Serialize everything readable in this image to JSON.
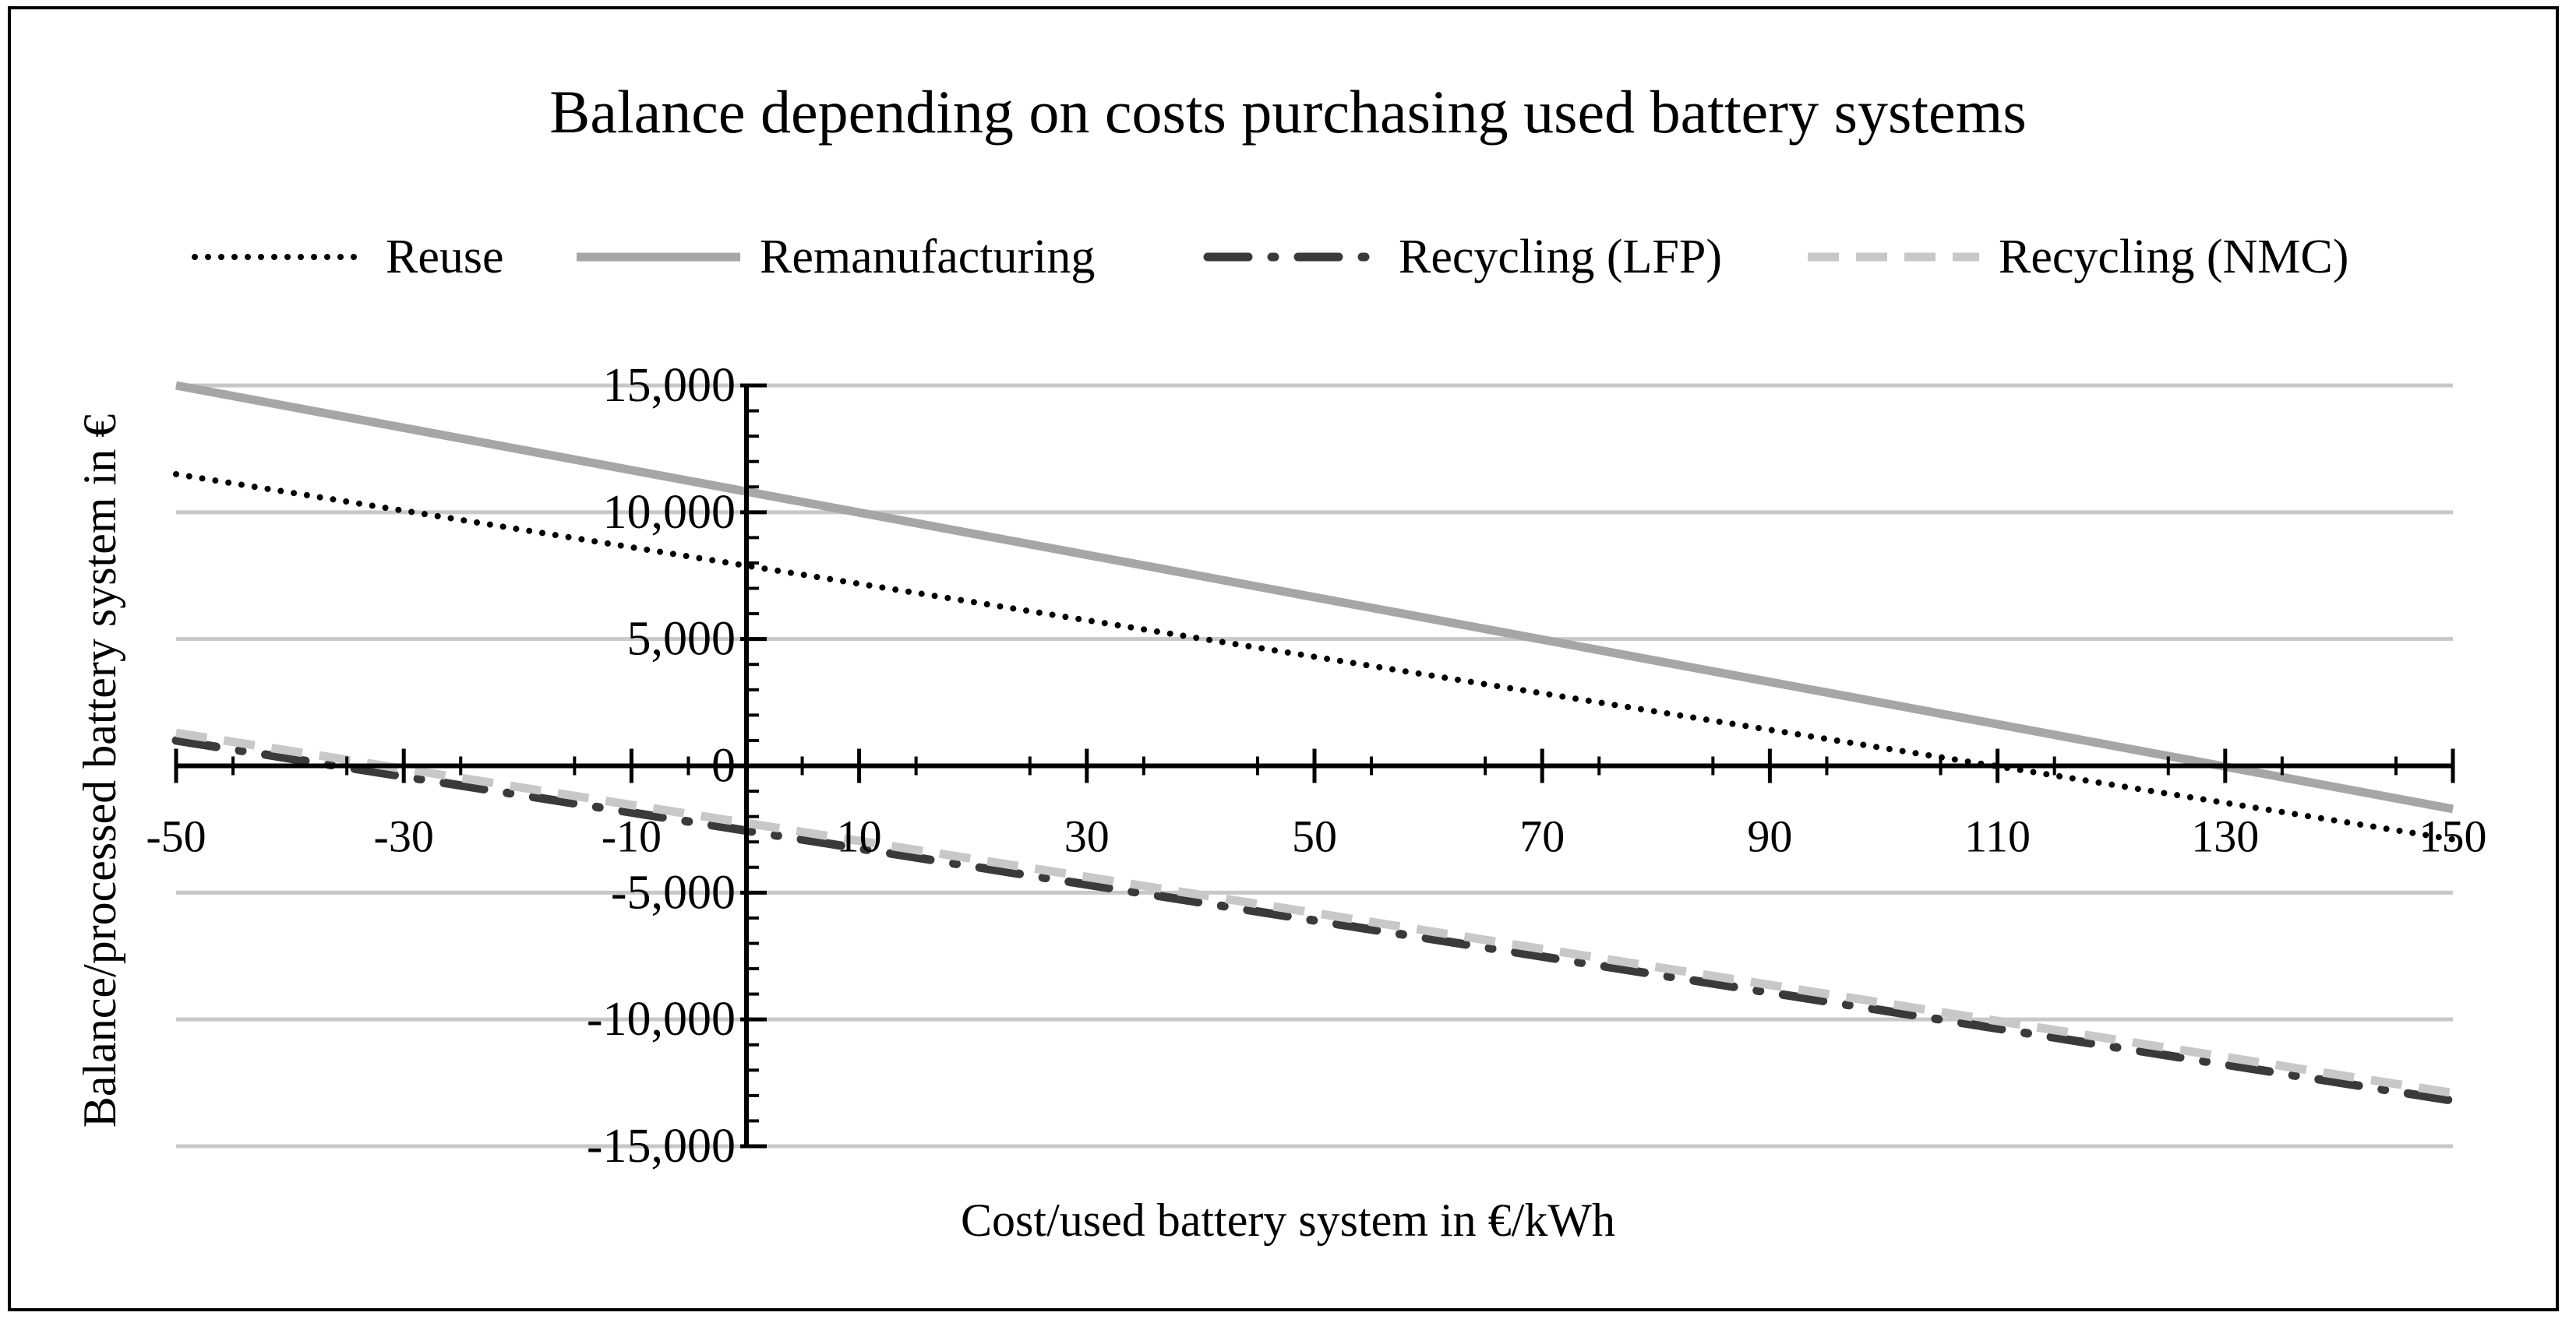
{
  "chart_data": {
    "type": "line",
    "title": "Balance depending on costs purchasing used battery systems",
    "xlabel": "Cost/used battery system in €/kWh",
    "ylabel": "Balance/processed battery system in €",
    "xlim": [
      -50,
      150
    ],
    "ylim": [
      -15000,
      15000
    ],
    "x_ticks": [
      -50,
      -30,
      -10,
      10,
      30,
      50,
      70,
      90,
      110,
      130,
      150
    ],
    "x_tick_labels": [
      "-50",
      "-30",
      "-10",
      "10",
      "30",
      "50",
      "70",
      "90",
      "110",
      "130",
      "150"
    ],
    "y_ticks": [
      15000,
      10000,
      5000,
      0,
      -5000,
      -10000,
      -15000
    ],
    "y_tick_labels": [
      "15,000",
      "10,000",
      "5,000",
      "0",
      "-5,000",
      "-10,000",
      "-15,000"
    ],
    "grid": "horizontal",
    "legend_position": "top",
    "x": [
      -50,
      150
    ],
    "series": [
      {
        "name": "Reuse",
        "values": [
          11500,
          -2900
        ],
        "color": "#000000",
        "style": "dotted"
      },
      {
        "name": "Remanufacturing",
        "values": [
          15000,
          -1700
        ],
        "color": "#a6a6a6",
        "style": "solid"
      },
      {
        "name": "Recycling (LFP)",
        "values": [
          1000,
          -13200
        ],
        "color": "#3a3a3a",
        "style": "dash-dot"
      },
      {
        "name": "Recycling (NMC)",
        "values": [
          1300,
          -12900
        ],
        "color": "#c8c8c8",
        "style": "dashed"
      }
    ]
  }
}
